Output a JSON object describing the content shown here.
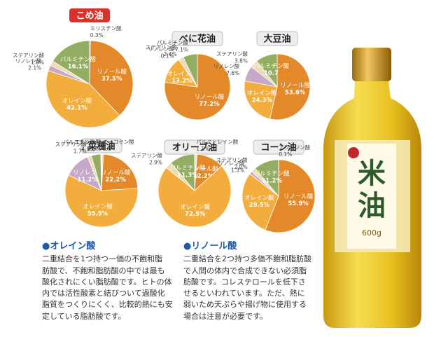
{
  "chart_data": [
    {
      "type": "pie",
      "title": "こめ油",
      "categories": [
        "ミリスチン酸",
        "リノール酸",
        "オレイン酸",
        "リノレン酸",
        "ステアリン酸",
        "パルミチン酸"
      ],
      "values": [
        0.3,
        37.5,
        42.1,
        2.1,
        1.8,
        16.1
      ],
      "value_labels": [
        "0.3%",
        "37.5%",
        "42.1%",
        "2.1%",
        "1.8%",
        "16.1%"
      ],
      "colors": [
        "#f4e4c0",
        "#e4892a",
        "#f2ad3c",
        "#c6a8c8",
        "#ecdcb4",
        "#93ad62"
      ]
    },
    {
      "type": "pie",
      "title": "べに花油",
      "categories": [
        "リノール酸",
        "オレイン酸",
        "リノレン酸",
        "ステアリン酸",
        "パルミチン酸"
      ],
      "values": [
        77.2,
        13.2,
        0.1,
        2.4,
        7.1
      ],
      "value_labels": [
        "77.2%",
        "13.2%",
        "0.1%",
        "2.4%",
        "7.1%"
      ],
      "colors": [
        "#e4892a",
        "#f2ad3c",
        "#c6a8c8",
        "#ecdcb4",
        "#93ad62"
      ]
    },
    {
      "type": "pie",
      "title": "大豆油",
      "categories": [
        "リノール酸",
        "オレイン酸",
        "リノレン酸",
        "ステアリン酸",
        "パルミチン酸"
      ],
      "values": [
        53.6,
        24.3,
        7.6,
        3.8,
        10.7
      ],
      "value_labels": [
        "53.6%",
        "24.3%",
        "7.6%",
        "3.8%",
        "10.7"
      ],
      "colors": [
        "#e4892a",
        "#f2ad3c",
        "#c6a8c8",
        "#ecdcb4",
        "#93ad62"
      ]
    },
    {
      "type": "pie",
      "title": "菜種油",
      "categories": [
        "エイコセン酸",
        "リノール酸",
        "オレイン酸",
        "リノレン酸",
        "ステアリン酸",
        "パルミチン酸",
        "エルシン酸"
      ],
      "values": [
        0.8,
        22.2,
        55.5,
        11.2,
        1.7,
        4.0,
        0.3
      ],
      "value_labels": [
        "0.8",
        "22.2%",
        "55.5%",
        "11.2%",
        "1.7%",
        "4.0%",
        "0.3%"
      ],
      "colors": [
        "#f4e4c0",
        "#e4892a",
        "#f2ad3c",
        "#c6a8c8",
        "#ecdcb4",
        "#93ad62",
        "#d8c0d8"
      ]
    },
    {
      "type": "pie",
      "title": "オリーブ油",
      "categories": [
        "パルミトレイン酸",
        "リノール酸",
        "オレイン酸",
        "ステアリン酸",
        "パルミチン酸"
      ],
      "values": [
        1.1,
        12.2,
        72.5,
        2.9,
        11.3
      ],
      "value_labels": [
        "1.1%",
        "12.2%",
        "72.5%",
        "2.9%",
        "11.3%"
      ],
      "colors": [
        "#f4e4c0",
        "#e4892a",
        "#f2ad3c",
        "#ecdcb4",
        "#93ad62"
      ]
    },
    {
      "type": "pie",
      "title": "コーン油",
      "categories": [
        "アラキジン酸",
        "リノール酸",
        "オレイン酸",
        "リノレン酸",
        "ステアリン酸",
        "パルミチン酸"
      ],
      "values": [
        0.1,
        55.9,
        29.5,
        1.3,
        2.0,
        11.2
      ],
      "value_labels": [
        "0.1%",
        "55.9%",
        "29.5%",
        "1.3%",
        "2.0%",
        "11.2%"
      ],
      "colors": [
        "#f4e4c0",
        "#e4892a",
        "#f2ad3c",
        "#c6a8c8",
        "#ecdcb4",
        "#93ad62"
      ]
    }
  ],
  "notes": [
    {
      "heading": "●オレイン酸",
      "lines": [
        "二重結合を1つ持つ一価の不飽和脂",
        "肪酸で、不飽和脂肪酸の中では最も",
        "酸化されにくい脂肪酸です。ヒトの体",
        "内では活性酸素と結びついて過酸化",
        "脂質をつくりにくく、比較的熱にも安",
        "定している脂肪酸です。"
      ]
    },
    {
      "heading": "●リノール酸",
      "lines": [
        "二重結合を2つ持つ多価不飽和脂肪酸",
        "で人間の体内で合成できない必須脂",
        "肪酸です。コレステロールを低下さ",
        "せるといわれています。ただ、熱に",
        "弱いため天ぷらや揚げ物に使用する",
        "場合は注意が必要です。"
      ]
    }
  ],
  "bottle": {
    "label": "米油",
    "weight": "600g"
  }
}
